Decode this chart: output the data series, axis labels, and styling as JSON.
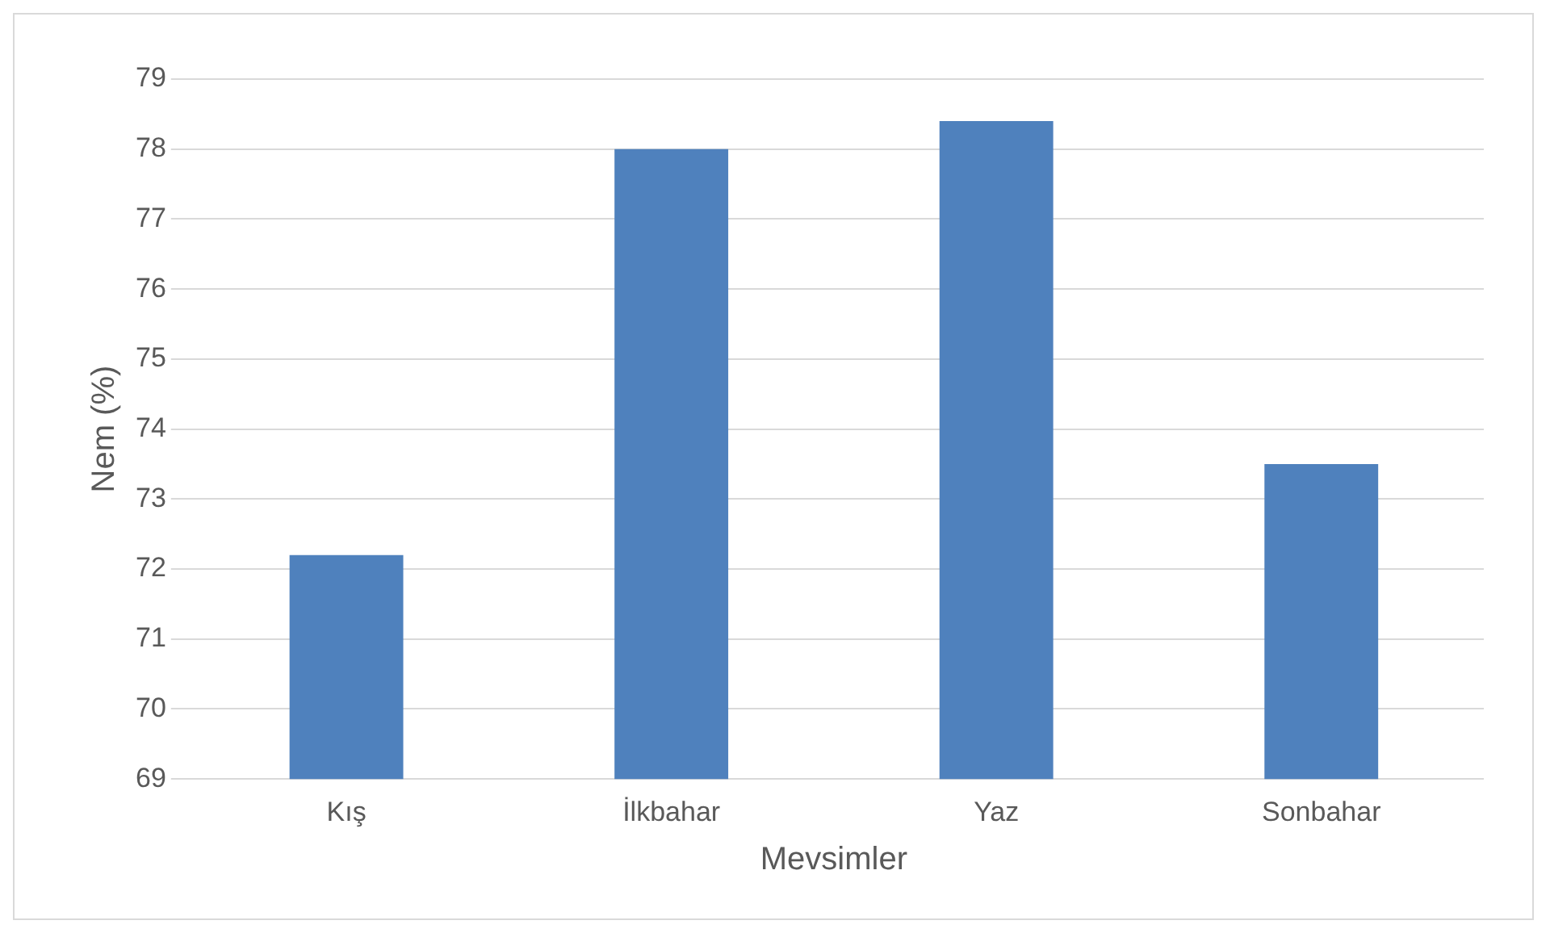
{
  "chart_data": {
    "type": "bar",
    "xlabel": "Mevsimler",
    "ylabel": "Nem (%)",
    "categories": [
      "Kış",
      "İlkbahar",
      "Yaz",
      "Sonbahar"
    ],
    "values": [
      72.2,
      78.0,
      78.4,
      73.5
    ],
    "color": "#4f81bd",
    "ylim": [
      69,
      79
    ],
    "yticks": [
      69,
      70,
      71,
      72,
      73,
      74,
      75,
      76,
      77,
      78,
      79
    ],
    "grid": "y",
    "legend": false
  }
}
